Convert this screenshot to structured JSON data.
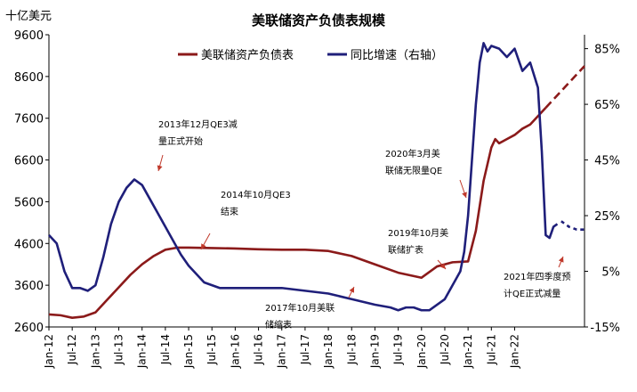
{
  "chart_data": {
    "type": "line",
    "title": "美联储资产负债表规模",
    "y_unit_label": "十亿美元",
    "y_left": {
      "min": 2600,
      "max": 9600,
      "ticks": [
        2600,
        3600,
        4600,
        5600,
        6600,
        7600,
        8600,
        9600
      ]
    },
    "y_right": {
      "min": -15,
      "max": 90,
      "ticks": [
        -15,
        5,
        25,
        45,
        65,
        85
      ],
      "tick_labels": [
        "-15%",
        "5%",
        "25%",
        "45%",
        "65%",
        "85%"
      ]
    },
    "x_labels": [
      "Jan-12",
      "Jul-12",
      "Jan-13",
      "Jul-13",
      "Jan-14",
      "Jul-14",
      "Jan-15",
      "Jul-15",
      "Jan-16",
      "Jul-16",
      "Jan-17",
      "Jul-17",
      "Jan-18",
      "Jul-18",
      "Jan-19",
      "Jul-19",
      "Jan-20",
      "Jul-20",
      "Jan-21",
      "Jul-21",
      "Jan-22"
    ],
    "legend": [
      {
        "name": "美联储资产负债表",
        "color": "#8B1A1A"
      },
      {
        "name": "同比增速（右轴）",
        "color": "#1F1F7A"
      }
    ],
    "series": [
      {
        "name": "美联储资产负债表",
        "axis": "left",
        "color": "#8B1A1A",
        "x": [
          0,
          3,
          6,
          9,
          12,
          15,
          18,
          21,
          24,
          27,
          30,
          33,
          36,
          42,
          48,
          54,
          60,
          66,
          72,
          78,
          84,
          90,
          96,
          100,
          104,
          108,
          110,
          112,
          114,
          115,
          116,
          117,
          118,
          120,
          122,
          124,
          126,
          128,
          130,
          132,
          134,
          136,
          138
        ],
        "y": [
          2900,
          2880,
          2820,
          2850,
          2950,
          3250,
          3550,
          3850,
          4100,
          4300,
          4450,
          4500,
          4500,
          4490,
          4480,
          4460,
          4450,
          4450,
          4420,
          4300,
          4100,
          3900,
          3780,
          4050,
          4150,
          4170,
          4900,
          6100,
          6900,
          7100,
          7000,
          7050,
          7100,
          7200,
          7350,
          7450,
          7650,
          7850,
          8050,
          8250,
          8450,
          8650,
          8850
        ],
        "forecast_from_index": 37
      },
      {
        "name": "同比增速（右轴）",
        "axis": "right",
        "color": "#1F1F7A",
        "x": [
          0,
          2,
          4,
          6,
          8,
          10,
          12,
          14,
          16,
          18,
          20,
          22,
          24,
          26,
          28,
          30,
          32,
          34,
          36,
          38,
          40,
          42,
          44,
          46,
          48,
          50,
          52,
          54,
          56,
          60,
          66,
          72,
          78,
          84,
          88,
          90,
          92,
          94,
          96,
          98,
          100,
          102,
          104,
          106,
          107,
          108,
          109,
          110,
          111,
          112,
          113,
          114,
          116,
          118,
          120,
          122,
          124,
          126,
          127,
          128,
          129,
          130,
          131,
          132,
          134,
          136,
          138
        ],
        "y": [
          18,
          15,
          5,
          -1,
          -1,
          -2,
          0,
          10,
          22,
          30,
          35,
          38,
          36,
          31,
          26,
          21,
          16,
          11,
          7,
          4,
          1,
          0,
          -1,
          -1,
          -1,
          -1,
          -1,
          -1,
          -1,
          -1,
          -2,
          -3,
          -5,
          -7,
          -8,
          -9,
          -8,
          -8,
          -9,
          -9,
          -7,
          -5,
          0,
          5,
          12,
          25,
          45,
          65,
          80,
          87,
          84,
          86,
          85,
          82,
          85,
          77,
          80,
          71,
          48,
          18,
          17,
          21,
          22,
          23,
          21,
          20,
          20
        ],
        "gap_after_x": 131
      }
    ],
    "annotations": [
      {
        "text": [
          "2013年12月QE3减",
          "量正式开始"
        ]
      },
      {
        "text": [
          "2014年10月QE3",
          "结束"
        ]
      },
      {
        "text": [
          "2017年10月美联",
          "储缩表"
        ]
      },
      {
        "text": [
          "2019年10月美",
          "联储扩表"
        ]
      },
      {
        "text": [
          "2020年3月美",
          "联储无限量QE"
        ]
      },
      {
        "text": [
          "2021年四季度预",
          "计QE正式减量"
        ]
      }
    ]
  }
}
